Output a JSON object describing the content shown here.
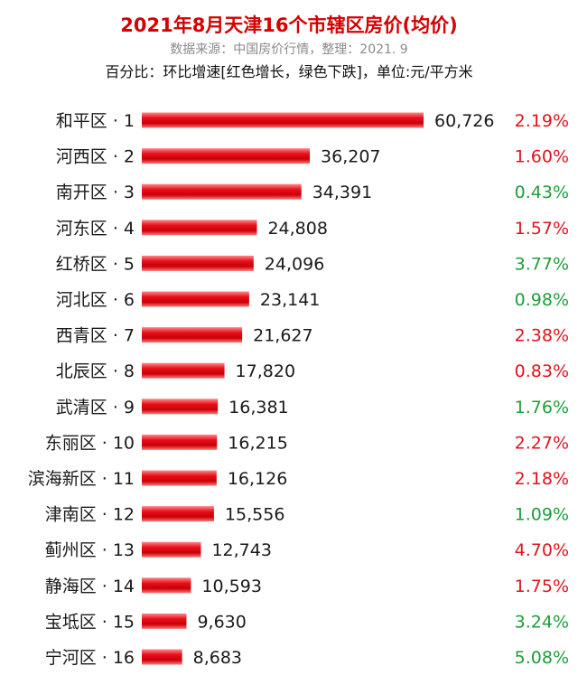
{
  "chart_data": {
    "type": "bar",
    "orientation": "horizontal",
    "title": "2021年8月天津16个市辖区房价(均价)",
    "subtitle": "数据来源：中国房价行情，整理：2021. 9",
    "note": "百分比：环比增速[红色增长，绿色下跌]，单位:元/平方米",
    "categories": [
      "和平区 · 1",
      "河西区 · 2",
      "南开区 · 3",
      "河东区 · 4",
      "红桥区 · 5",
      "河北区 · 6",
      "西青区 · 7",
      "北辰区 · 8",
      "武清区 · 9",
      "东丽区 · 10",
      "滨海新区 · 11",
      "津南区 · 12",
      "蓟州区 · 13",
      "静海区 · 14",
      "宝坻区 · 15",
      "宁河区 · 16"
    ],
    "values": [
      60726,
      36207,
      34391,
      24808,
      24096,
      23141,
      21627,
      17820,
      16381,
      16215,
      16126,
      15556,
      12743,
      10593,
      9630,
      8683
    ],
    "value_labels": [
      "60,726",
      "36,207",
      "34,391",
      "24,808",
      "24,096",
      "23,141",
      "21,627",
      "17,820",
      "16,381",
      "16,215",
      "16,126",
      "15,556",
      "12,743",
      "10,593",
      "9,630",
      "8,683"
    ],
    "change_labels": [
      "2.19%",
      "1.60%",
      "0.43%",
      "1.57%",
      "3.77%",
      "0.98%",
      "2.38%",
      "0.83%",
      "1.76%",
      "2.27%",
      "2.18%",
      "1.09%",
      "4.70%",
      "1.75%",
      "3.24%",
      "5.08%"
    ],
    "change_direction": [
      "up",
      "up",
      "down",
      "up",
      "down",
      "down",
      "up",
      "up",
      "down",
      "up",
      "up",
      "down",
      "up",
      "up",
      "down",
      "down"
    ],
    "colors": {
      "bar": "#e8101a",
      "up": "#e0141c",
      "down": "#1f9e3a"
    }
  }
}
